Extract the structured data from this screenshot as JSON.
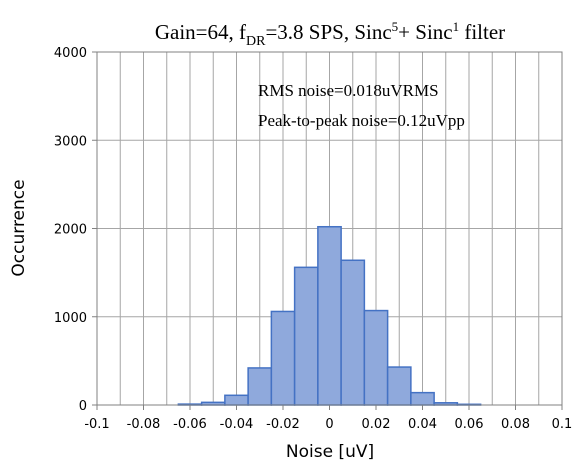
{
  "chart_data": {
    "type": "bar",
    "title": {
      "base": "Gain=64, f",
      "sub": "DR",
      "mid": "=3.8 SPS, Sinc",
      "sup1": "5",
      "mid2": "+ Sinc",
      "sup2": "1",
      "tail": " filter"
    },
    "annotations": [
      "RMS noise=0.018uVRMS",
      "Peak-to-peak noise=0.12uVpp"
    ],
    "xlabel": "Noise [uV]",
    "ylabel": "Occurrence",
    "xlim": [
      -0.1,
      0.1
    ],
    "ylim": [
      0,
      4000
    ],
    "x_ticks": [
      -0.1,
      -0.08,
      -0.06,
      -0.04,
      -0.02,
      0,
      0.02,
      0.04,
      0.06,
      0.08,
      0.1
    ],
    "x_tick_labels": [
      "-0.1",
      "-0.08",
      "-0.06",
      "-0.04",
      "-0.02",
      "0",
      "0.02",
      "0.04",
      "0.06",
      "0.08",
      "0.1"
    ],
    "y_ticks": [
      0,
      1000,
      2000,
      3000,
      4000
    ],
    "y_tick_labels": [
      "0",
      "1000",
      "2000",
      "3000",
      "4000"
    ],
    "x_grid_step": 0.01,
    "grid": true,
    "bin_width": 0.01,
    "bin_centers": [
      -0.06,
      -0.05,
      -0.04,
      -0.03,
      -0.02,
      -0.01,
      0,
      0.01,
      0.02,
      0.03,
      0.04,
      0.05,
      0.06
    ],
    "values": [
      10,
      30,
      110,
      420,
      1060,
      1560,
      2020,
      1640,
      1070,
      430,
      140,
      25,
      8
    ],
    "colors": {
      "bar_fill": "#8fa9dc",
      "bar_stroke": "#4472c4",
      "grid": "#a6a6a6",
      "axis": "#808080"
    }
  }
}
